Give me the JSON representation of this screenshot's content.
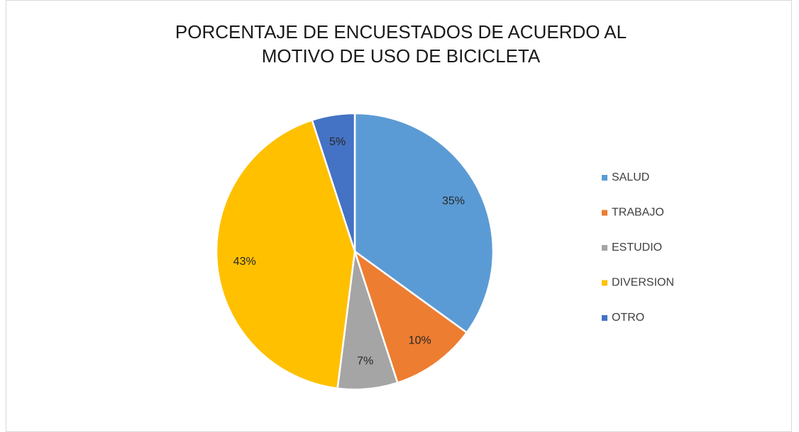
{
  "chart_data": {
    "type": "pie",
    "title": "PORCENTAJE DE ENCUESTADOS DE ACUERDO AL MOTIVO DE USO DE BICICLETA",
    "categories": [
      "SALUD",
      "TRABAJO",
      "ESTUDIO",
      "DIVERSION",
      "OTRO"
    ],
    "values": [
      35,
      10,
      7,
      43,
      5
    ],
    "value_labels": [
      "35%",
      "10%",
      "7%",
      "43%",
      "5%"
    ],
    "colors": [
      "#5b9bd5",
      "#ed7d31",
      "#a5a5a5",
      "#ffc000",
      "#4472c4"
    ],
    "legend": "right"
  }
}
